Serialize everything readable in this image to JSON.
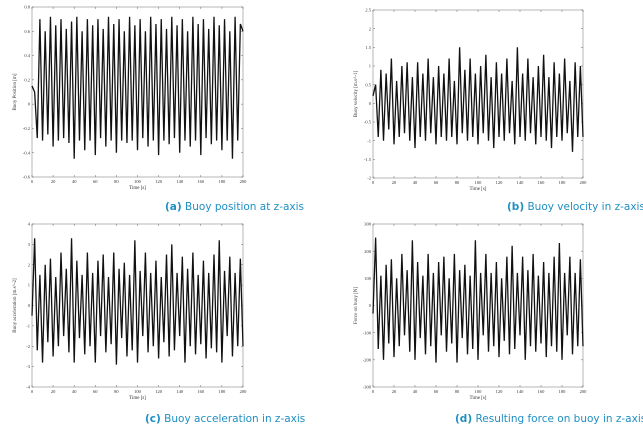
{
  "theme": {
    "line_color": "#111111",
    "caption_color": "#1f8fc2"
  },
  "chart_data": [
    {
      "id": "a",
      "type": "line",
      "caption_tag": "(a)",
      "caption_text": "Buoy position at z-axis",
      "xlabel": "Time [s]",
      "ylabel": "Buoy Position [m]",
      "xlim": [
        0,
        200
      ],
      "ylim": [
        -0.6,
        0.8
      ],
      "xticks": [
        0,
        20,
        40,
        60,
        80,
        100,
        120,
        140,
        160,
        180,
        200
      ],
      "yticks": [
        -0.6,
        -0.4,
        -0.2,
        0,
        0.2,
        0.4,
        0.6,
        0.8
      ],
      "ytick_labels": [
        "-0.6",
        "-0.4",
        "-0.2",
        "0",
        "0.2",
        "0.4",
        "0.6",
        "0.8"
      ],
      "grid": false,
      "x": [
        0,
        2.5,
        5,
        7.5,
        10,
        12.5,
        15,
        17.5,
        20,
        22.5,
        25,
        27.5,
        30,
        32.5,
        35,
        37.5,
        40,
        42.5,
        45,
        47.5,
        50,
        52.5,
        55,
        57.5,
        60,
        62.5,
        65,
        67.5,
        70,
        72.5,
        75,
        77.5,
        80,
        82.5,
        85,
        87.5,
        90,
        92.5,
        95,
        97.5,
        100,
        102.5,
        105,
        107.5,
        110,
        112.5,
        115,
        117.5,
        120,
        122.5,
        125,
        127.5,
        130,
        132.5,
        135,
        137.5,
        140,
        142.5,
        145,
        147.5,
        150,
        152.5,
        155,
        157.5,
        160,
        162.5,
        165,
        167.5,
        170,
        172.5,
        175,
        177.5,
        180,
        182.5,
        185,
        187.5,
        190,
        192.5,
        195,
        197.5,
        200
      ],
      "y": [
        0.15,
        0.1,
        -0.28,
        0.7,
        -0.3,
        0.6,
        -0.25,
        0.72,
        -0.35,
        0.65,
        -0.3,
        0.7,
        -0.28,
        0.62,
        -0.32,
        0.68,
        -0.45,
        0.72,
        -0.3,
        0.6,
        -0.38,
        0.7,
        -0.3,
        0.65,
        -0.42,
        0.7,
        -0.28,
        0.62,
        -0.35,
        0.72,
        -0.3,
        0.66,
        -0.4,
        0.7,
        -0.3,
        0.6,
        -0.32,
        0.72,
        -0.3,
        0.65,
        -0.38,
        0.7,
        -0.28,
        0.6,
        -0.35,
        0.72,
        -0.3,
        0.66,
        -0.42,
        0.7,
        -0.3,
        0.62,
        -0.33,
        0.72,
        -0.28,
        0.65,
        -0.4,
        0.7,
        -0.3,
        0.6,
        -0.35,
        0.72,
        -0.3,
        0.66,
        -0.42,
        0.7,
        -0.28,
        0.62,
        -0.33,
        0.72,
        -0.3,
        0.65,
        -0.38,
        0.7,
        -0.3,
        0.6,
        -0.45,
        0.72,
        -0.3,
        0.66,
        0.6
      ]
    },
    {
      "id": "b",
      "type": "line",
      "caption_tag": "(b)",
      "caption_text": "Buoy velocity in z-axis",
      "xlabel": "Time [s]",
      "ylabel": "Buoy velocity [m.s^-1]",
      "xlim": [
        0,
        200
      ],
      "ylim": [
        -2,
        2.5
      ],
      "xticks": [
        0,
        20,
        40,
        60,
        80,
        100,
        120,
        140,
        160,
        180,
        200
      ],
      "yticks": [
        -2,
        -1.5,
        -1,
        -0.5,
        0,
        0.5,
        1,
        1.5,
        2,
        2.5
      ],
      "ytick_labels": [
        "-2",
        "-1.5",
        "-1",
        "-0.5",
        "0",
        "0.5",
        "1",
        "1.5",
        "2",
        "2.5"
      ],
      "grid": false,
      "x": [
        0,
        2.5,
        5,
        7.5,
        10,
        12.5,
        15,
        17.5,
        20,
        22.5,
        25,
        27.5,
        30,
        32.5,
        35,
        37.5,
        40,
        42.5,
        45,
        47.5,
        50,
        52.5,
        55,
        57.5,
        60,
        62.5,
        65,
        67.5,
        70,
        72.5,
        75,
        77.5,
        80,
        82.5,
        85,
        87.5,
        90,
        92.5,
        95,
        97.5,
        100,
        102.5,
        105,
        107.5,
        110,
        112.5,
        115,
        117.5,
        120,
        122.5,
        125,
        127.5,
        130,
        132.5,
        135,
        137.5,
        140,
        142.5,
        145,
        147.5,
        150,
        152.5,
        155,
        157.5,
        160,
        162.5,
        165,
        167.5,
        170,
        172.5,
        175,
        177.5,
        180,
        182.5,
        185,
        187.5,
        190,
        192.5,
        195,
        197.5,
        200
      ],
      "y": [
        0.2,
        0.5,
        -0.9,
        0.9,
        -1,
        0.8,
        -0.7,
        1.2,
        -1.1,
        0.6,
        -0.9,
        1.0,
        -0.8,
        1.1,
        -1.0,
        0.7,
        -1.2,
        1.1,
        -0.9,
        0.8,
        -1.0,
        1.2,
        -0.8,
        0.7,
        -1.1,
        1.0,
        -0.9,
        0.8,
        -1.0,
        1.2,
        -0.9,
        0.6,
        -1.1,
        1.5,
        -0.8,
        0.9,
        -1.0,
        1.2,
        -0.9,
        0.8,
        -1.1,
        1.0,
        -0.8,
        1.3,
        -1.0,
        0.7,
        -1.2,
        1.1,
        -0.9,
        0.8,
        -1.0,
        1.2,
        -0.8,
        0.6,
        -1.1,
        1.5,
        -0.9,
        0.8,
        -1.0,
        1.2,
        -0.8,
        0.7,
        -1.1,
        1.0,
        -0.9,
        1.3,
        -1.0,
        0.7,
        -1.2,
        1.1,
        -0.9,
        0.8,
        -1.0,
        1.2,
        -0.8,
        0.6,
        -1.3,
        1.1,
        -0.9,
        1.0,
        -0.9
      ]
    },
    {
      "id": "c",
      "type": "line",
      "caption_tag": "(c)",
      "caption_text": "Buoy acceleration in z-axis",
      "xlabel": "Time [s]",
      "ylabel": "Buoy acceleration [m.s^-2]",
      "xlim": [
        0,
        200
      ],
      "ylim": [
        -4,
        4
      ],
      "xticks": [
        0,
        20,
        40,
        60,
        80,
        100,
        120,
        140,
        160,
        180,
        200
      ],
      "yticks": [
        -4,
        -3,
        -2,
        -1,
        0,
        1,
        2,
        3,
        4
      ],
      "ytick_labels": [
        "-4",
        "-3",
        "-2",
        "-1",
        "0",
        "1",
        "2",
        "3",
        "4"
      ],
      "grid": false,
      "x": [
        0,
        2.5,
        5,
        7.5,
        10,
        12.5,
        15,
        17.5,
        20,
        22.5,
        25,
        27.5,
        30,
        32.5,
        35,
        37.5,
        40,
        42.5,
        45,
        47.5,
        50,
        52.5,
        55,
        57.5,
        60,
        62.5,
        65,
        67.5,
        70,
        72.5,
        75,
        77.5,
        80,
        82.5,
        85,
        87.5,
        90,
        92.5,
        95,
        97.5,
        100,
        102.5,
        105,
        107.5,
        110,
        112.5,
        115,
        117.5,
        120,
        122.5,
        125,
        127.5,
        130,
        132.5,
        135,
        137.5,
        140,
        142.5,
        145,
        147.5,
        150,
        152.5,
        155,
        157.5,
        160,
        162.5,
        165,
        167.5,
        170,
        172.5,
        175,
        177.5,
        180,
        182.5,
        185,
        187.5,
        190,
        192.5,
        195,
        197.5,
        200
      ],
      "y": [
        -0.5,
        3.3,
        -2.2,
        1.5,
        -2.8,
        2.0,
        -1.8,
        2.3,
        -2.5,
        1.4,
        -2.0,
        2.6,
        -1.5,
        1.8,
        -2.3,
        3.3,
        -2.8,
        2.2,
        -1.6,
        1.5,
        -2.4,
        2.6,
        -2.0,
        1.6,
        -2.8,
        2.2,
        -1.5,
        2.5,
        -2.3,
        1.4,
        -1.9,
        2.6,
        -2.9,
        1.8,
        -1.6,
        2.1,
        -2.5,
        1.5,
        -2.2,
        3.2,
        -2.8,
        1.7,
        -1.5,
        2.6,
        -2.3,
        1.6,
        -2.0,
        2.2,
        -2.6,
        1.4,
        -1.8,
        2.5,
        -2.5,
        3.0,
        -2.2,
        1.6,
        -1.5,
        2.4,
        -2.8,
        1.8,
        -2.0,
        2.6,
        -2.4,
        1.5,
        -1.9,
        2.2,
        -2.6,
        1.6,
        -2.1,
        2.5,
        -2.3,
        3.2,
        -2.8,
        1.7,
        -1.5,
        2.4,
        -2.5,
        1.6,
        -2.0,
        2.3,
        -2.0
      ]
    },
    {
      "id": "d",
      "type": "line",
      "caption_tag": "(d)",
      "caption_text": "Resulting force on buoy in z-axis",
      "xlabel": "Time [s]",
      "ylabel": "Force on buoy [N]",
      "xlim": [
        0,
        200
      ],
      "ylim": [
        -300,
        300
      ],
      "xticks": [
        0,
        20,
        40,
        60,
        80,
        100,
        120,
        140,
        160,
        180,
        200
      ],
      "yticks": [
        -300,
        -200,
        -100,
        0,
        100,
        200,
        300
      ],
      "ytick_labels": [
        "-300",
        "-200",
        "-100",
        "0",
        "100",
        "200",
        "300"
      ],
      "grid": false,
      "x": [
        0,
        2.5,
        5,
        7.5,
        10,
        12.5,
        15,
        17.5,
        20,
        22.5,
        25,
        27.5,
        30,
        32.5,
        35,
        37.5,
        40,
        42.5,
        45,
        47.5,
        50,
        52.5,
        55,
        57.5,
        60,
        62.5,
        65,
        67.5,
        70,
        72.5,
        75,
        77.5,
        80,
        82.5,
        85,
        87.5,
        90,
        92.5,
        95,
        97.5,
        100,
        102.5,
        105,
        107.5,
        110,
        112.5,
        115,
        117.5,
        120,
        122.5,
        125,
        127.5,
        130,
        132.5,
        135,
        137.5,
        140,
        142.5,
        145,
        147.5,
        150,
        152.5,
        155,
        157.5,
        160,
        162.5,
        165,
        167.5,
        170,
        172.5,
        175,
        177.5,
        180,
        182.5,
        185,
        187.5,
        190,
        192.5,
        195,
        197.5,
        200
      ],
      "y": [
        -30,
        250,
        -160,
        110,
        -200,
        150,
        -140,
        170,
        -190,
        100,
        -150,
        190,
        -110,
        130,
        -170,
        240,
        -200,
        160,
        -120,
        110,
        -180,
        190,
        -150,
        120,
        -210,
        160,
        -110,
        180,
        -170,
        100,
        -140,
        190,
        -210,
        130,
        -120,
        150,
        -180,
        110,
        -160,
        240,
        -200,
        120,
        -110,
        190,
        -170,
        120,
        -150,
        160,
        -190,
        100,
        -130,
        180,
        -180,
        220,
        -160,
        120,
        -110,
        180,
        -200,
        130,
        -150,
        190,
        -170,
        110,
        -140,
        160,
        -190,
        120,
        -150,
        180,
        -170,
        230,
        -200,
        120,
        -110,
        180,
        -180,
        120,
        -150,
        170,
        -150
      ]
    }
  ]
}
